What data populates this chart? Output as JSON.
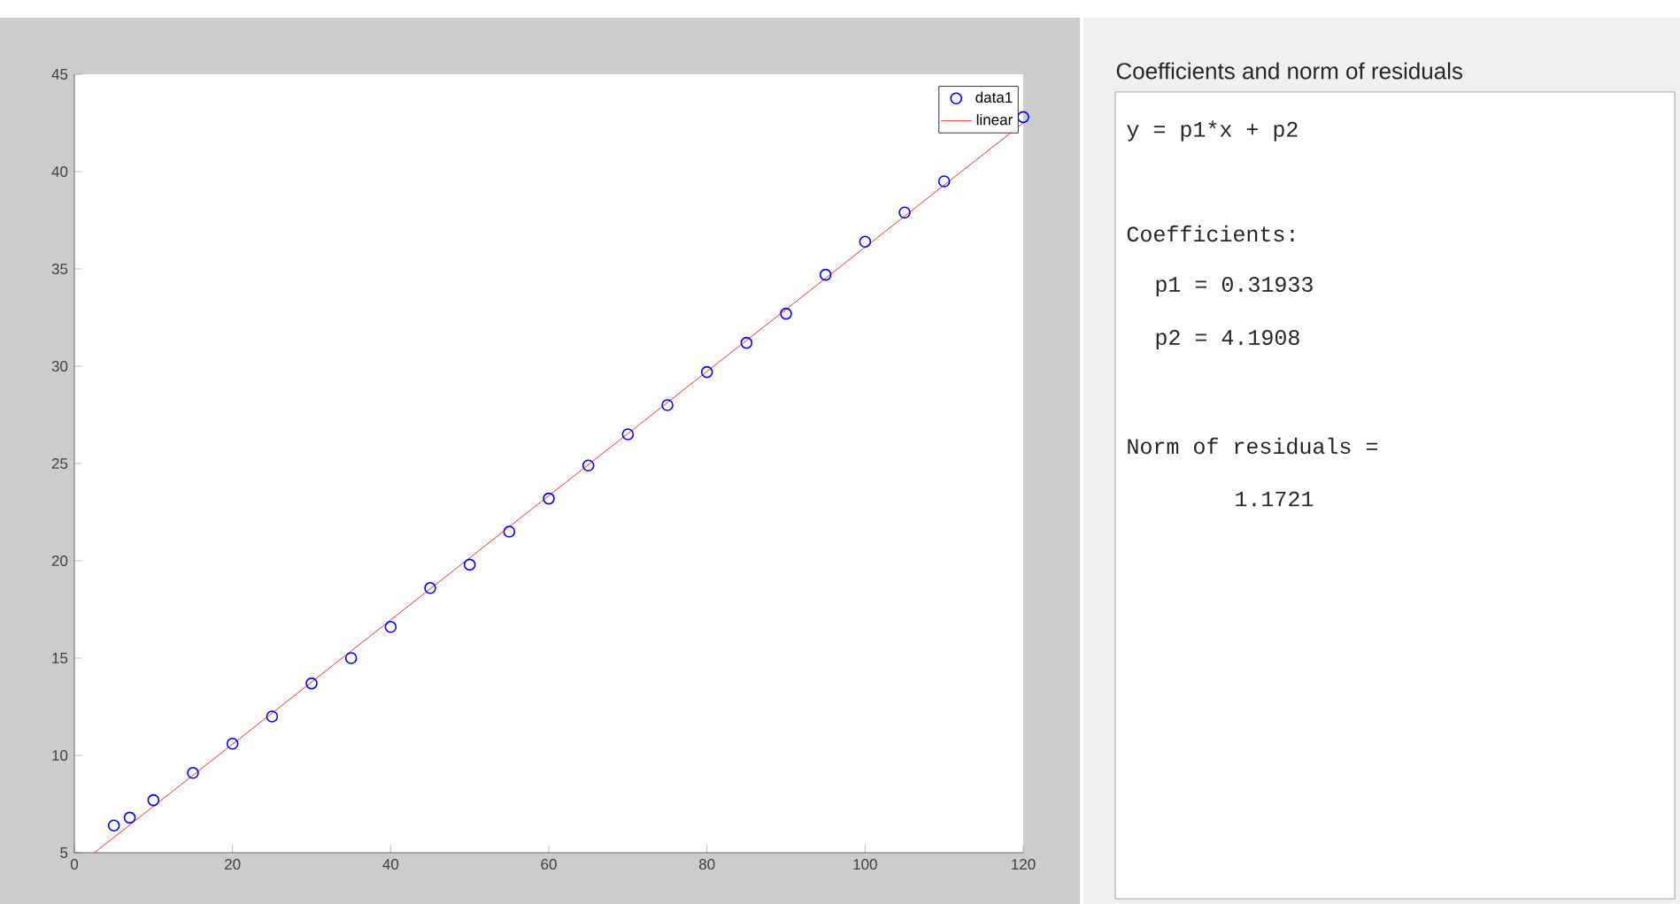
{
  "chart_data": {
    "type": "scatter",
    "xlim": [
      0,
      120
    ],
    "ylim": [
      5,
      45
    ],
    "xticks": [
      0,
      20,
      40,
      60,
      80,
      100,
      120
    ],
    "yticks": [
      5,
      10,
      15,
      20,
      25,
      30,
      35,
      40,
      45
    ],
    "legend": "top right",
    "series": [
      {
        "name": "data1",
        "type": "scatter",
        "marker": "circle",
        "color": "#0000ff",
        "x": [
          5,
          7,
          10,
          15,
          20,
          25,
          30,
          35,
          40,
          45,
          50,
          55,
          60,
          65,
          70,
          75,
          80,
          85,
          90,
          95,
          100,
          105,
          110,
          115,
          120
        ],
        "values": [
          6.4,
          6.8,
          7.7,
          9.1,
          10.6,
          12.0,
          13.7,
          15.0,
          16.6,
          18.6,
          19.8,
          21.5,
          23.2,
          24.9,
          26.5,
          28.0,
          29.7,
          31.2,
          32.7,
          34.7,
          36.4,
          37.9,
          39.5,
          null,
          42.8
        ]
      },
      {
        "name": "linear",
        "type": "line",
        "marker": "none",
        "color": "#ff0000",
        "x": [
          2.53,
          120
        ],
        "values": [
          5.0,
          42.5
        ]
      }
    ],
    "annotations": [
      "Coefficients and norm of residuals",
      "y = p1*x + p2",
      "Coefficients:",
      "p1 = 0.31933",
      "p2 = 4.1908",
      "Norm of residuals =",
      "1.1721"
    ]
  }
}
